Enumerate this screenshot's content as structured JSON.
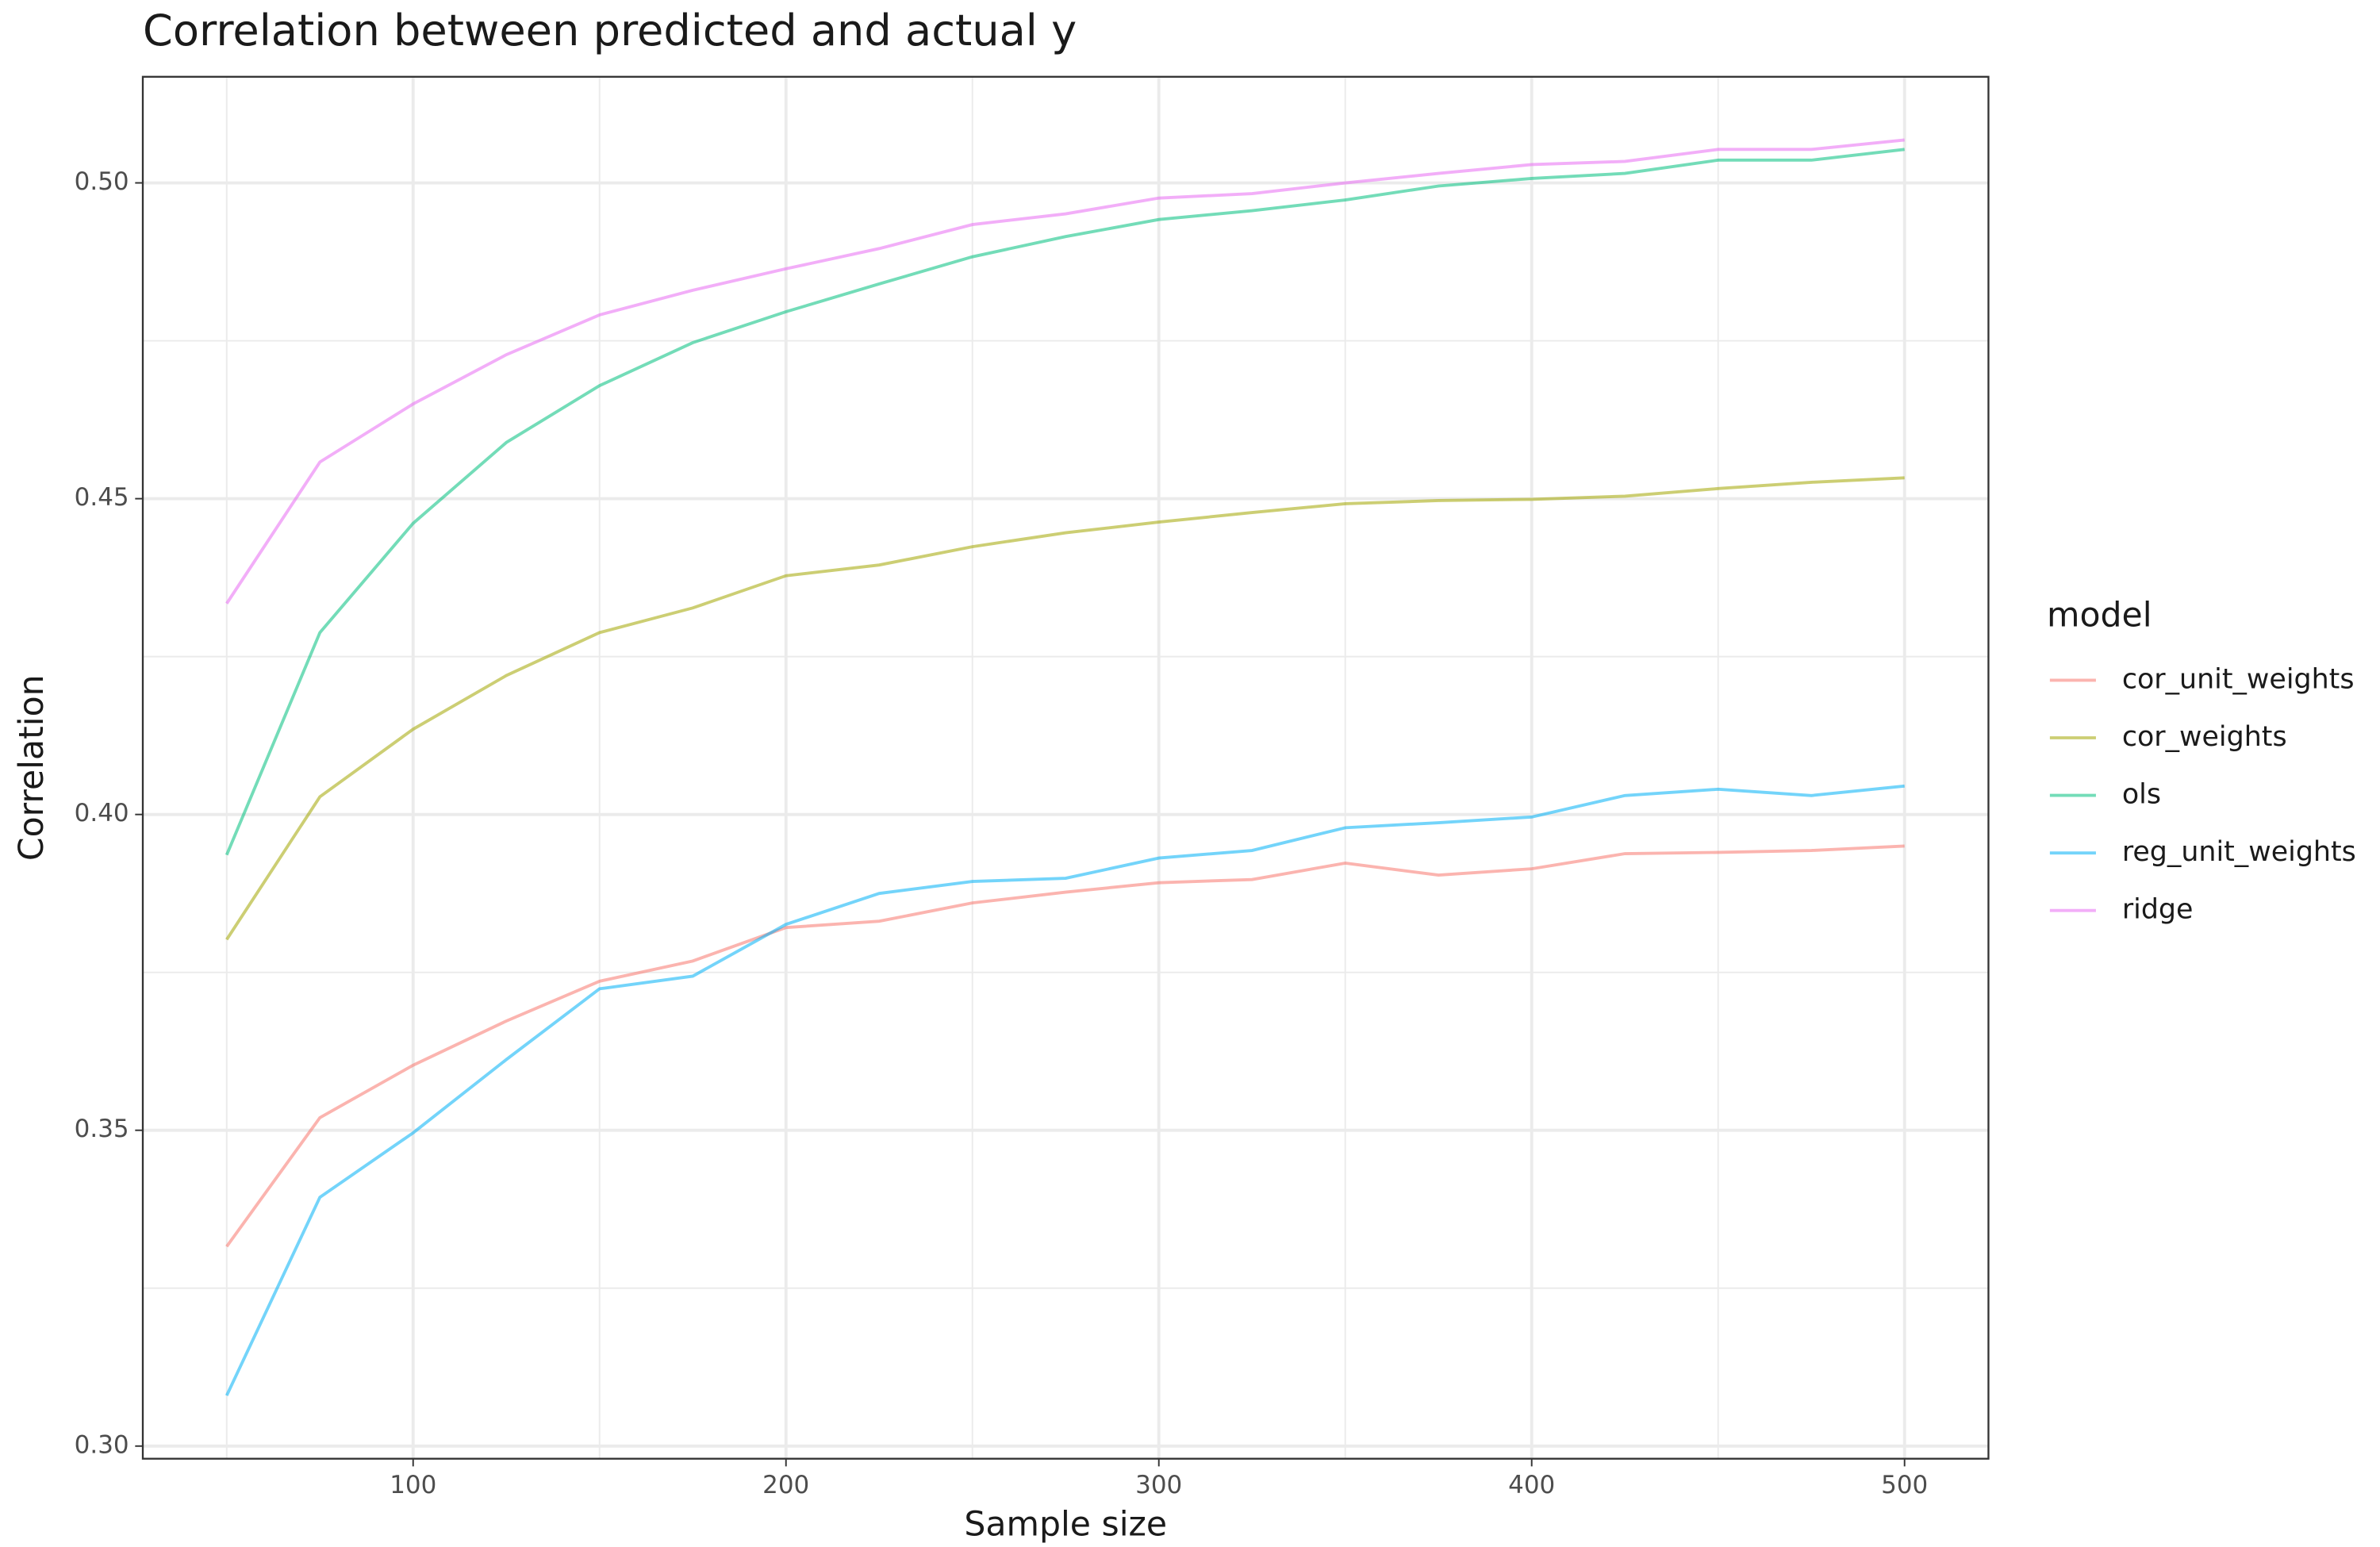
{
  "chart_data": {
    "type": "line",
    "title": "Correlation between predicted and actual y",
    "x_label": "Sample size",
    "y_label": "Correlation",
    "legend_title": "model",
    "legend_position": "right",
    "grid": true,
    "x": [
      50,
      75,
      100,
      125,
      150,
      175,
      200,
      225,
      250,
      275,
      300,
      325,
      350,
      375,
      400,
      425,
      450,
      475,
      500
    ],
    "xlim": [
      27.5,
      522.5
    ],
    "xticks": [
      100,
      200,
      300,
      400,
      500
    ],
    "ylim": [
      0.298,
      0.5168
    ],
    "yticks": [
      {
        "value": 0.3,
        "label": "0.30"
      },
      0.35,
      {
        "value": 0.4,
        "label": "0.40"
      },
      0.45,
      {
        "value": 0.5,
        "label": "0.50"
      }
    ],
    "series": [
      {
        "name": "cor_unit_weights",
        "color": "#F8766D",
        "values": [
          0.3316,
          0.352,
          0.3603,
          0.3673,
          0.3736,
          0.3768,
          0.3821,
          0.3831,
          0.386,
          0.3877,
          0.3892,
          0.3897,
          0.3923,
          0.3904,
          0.3914,
          0.3938,
          0.394,
          0.3943,
          0.395
        ]
      },
      {
        "name": "cor_weights",
        "color": "#A3A500",
        "values": [
          0.3802,
          0.4028,
          0.4135,
          0.422,
          0.4288,
          0.4327,
          0.4378,
          0.4395,
          0.4424,
          0.4446,
          0.4463,
          0.4478,
          0.4492,
          0.4497,
          0.4499,
          0.4504,
          0.4516,
          0.4526,
          0.4533
        ]
      },
      {
        "name": "ols",
        "color": "#00BF7D",
        "values": [
          0.3936,
          0.4288,
          0.4461,
          0.4589,
          0.4679,
          0.4747,
          0.4796,
          0.484,
          0.4883,
          0.4915,
          0.4942,
          0.4956,
          0.4973,
          0.4995,
          0.5007,
          0.5015,
          0.5036,
          0.5036,
          0.5053
        ]
      },
      {
        "name": "reg_unit_weights",
        "color": "#00B0F6",
        "values": [
          0.308,
          0.3394,
          0.3496,
          0.3612,
          0.3724,
          0.3744,
          0.3826,
          0.3875,
          0.3894,
          0.3899,
          0.3931,
          0.3943,
          0.3979,
          0.3987,
          0.3996,
          0.403,
          0.404,
          0.403,
          0.4045
        ]
      },
      {
        "name": "ridge",
        "color": "#E76BF3",
        "values": [
          0.4334,
          0.4558,
          0.465,
          0.4728,
          0.4791,
          0.483,
          0.4864,
          0.4896,
          0.4934,
          0.4951,
          0.4976,
          0.4983,
          0.5,
          0.5015,
          0.5029,
          0.5034,
          0.5053,
          0.5053,
          0.5068
        ]
      }
    ]
  }
}
